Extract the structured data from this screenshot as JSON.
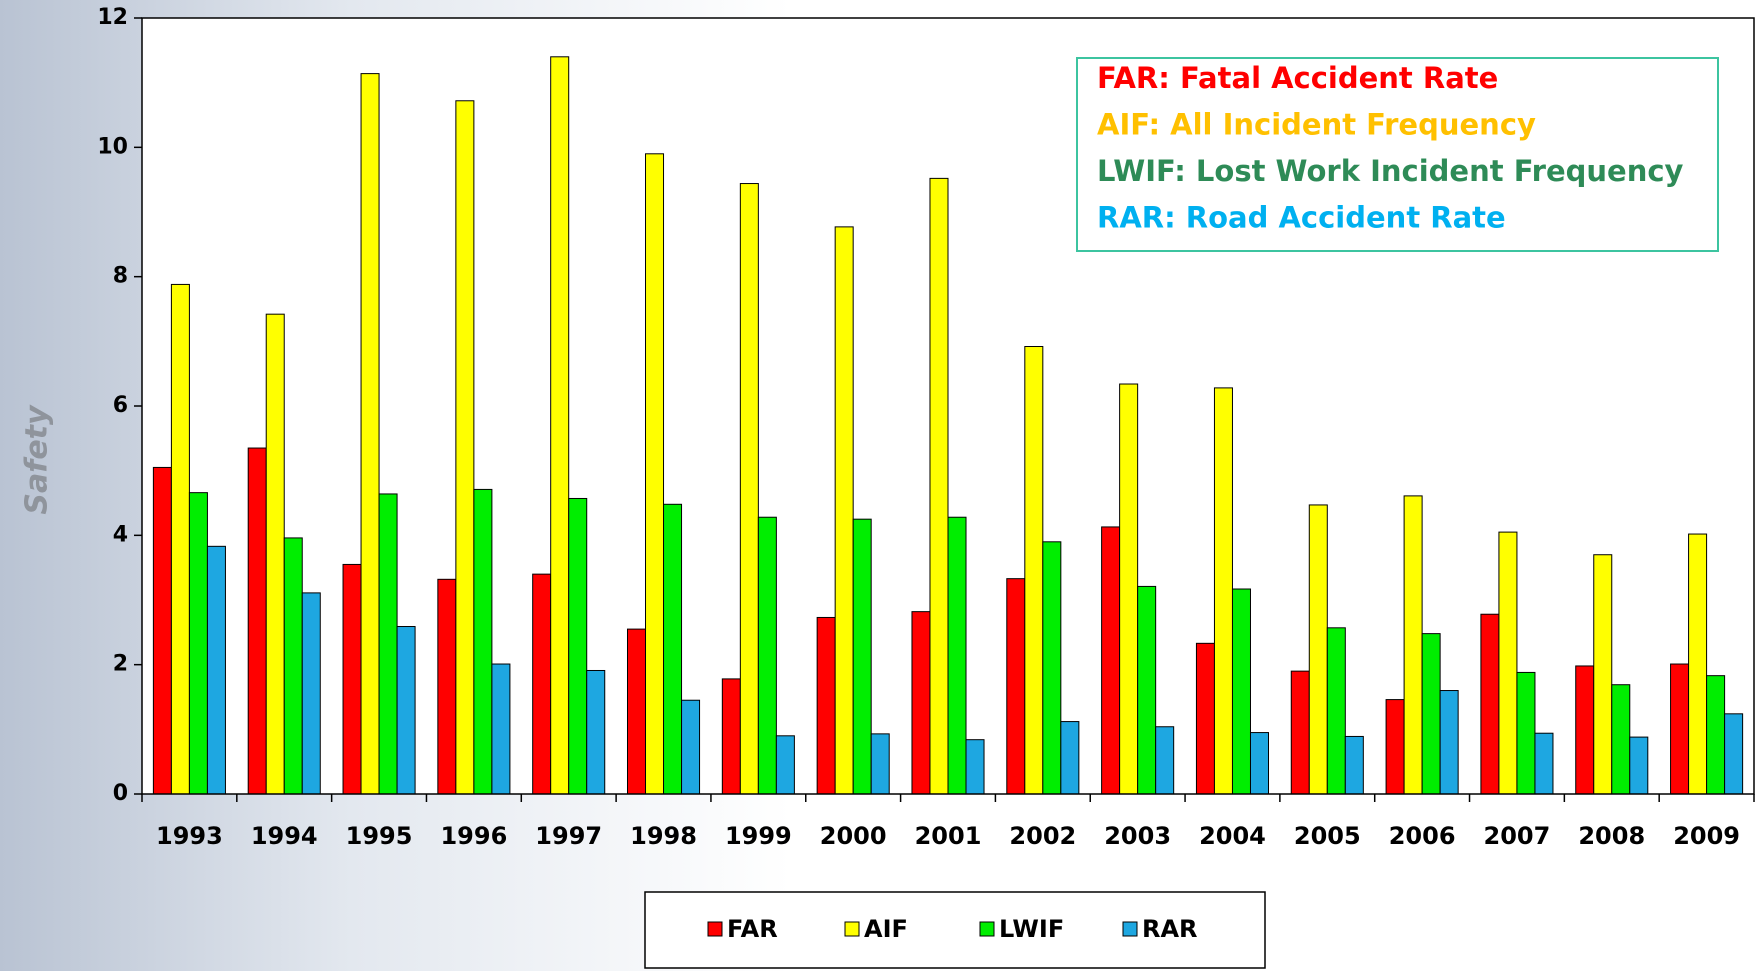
{
  "chart_data": {
    "type": "bar",
    "y_label": "Safety",
    "categories": [
      "1993",
      "1994",
      "1995",
      "1996",
      "1997",
      "1998",
      "1999",
      "2000",
      "2001",
      "2002",
      "2003",
      "2004",
      "2005",
      "2006",
      "2007",
      "2008",
      "2009"
    ],
    "series": [
      {
        "name": "FAR",
        "color": "#ff0000",
        "values": [
          5.05,
          5.35,
          3.55,
          3.32,
          3.4,
          2.55,
          1.78,
          2.73,
          2.82,
          3.33,
          4.13,
          2.33,
          1.9,
          1.46,
          2.78,
          1.98,
          2.01
        ]
      },
      {
        "name": "AIF",
        "color": "#ffff00",
        "values": [
          7.88,
          7.42,
          11.14,
          10.72,
          11.4,
          9.9,
          9.44,
          8.77,
          9.52,
          6.92,
          6.34,
          6.28,
          4.47,
          4.61,
          4.05,
          3.7,
          4.02
        ]
      },
      {
        "name": "LWIF",
        "color": "#00ee00",
        "values": [
          4.66,
          3.96,
          4.64,
          4.71,
          4.57,
          4.48,
          4.28,
          4.25,
          4.28,
          3.9,
          3.21,
          3.17,
          2.57,
          2.48,
          1.88,
          1.69,
          1.83
        ]
      },
      {
        "name": "RAR",
        "color": "#1ea7e1",
        "values": [
          3.83,
          3.11,
          2.59,
          2.01,
          1.91,
          1.45,
          0.9,
          0.93,
          0.84,
          1.12,
          1.04,
          0.95,
          0.89,
          1.6,
          0.94,
          0.88,
          1.24
        ]
      }
    ],
    "annotations": [
      {
        "text": "FAR: Fatal Accident Rate",
        "color": "#ff0000"
      },
      {
        "text": "AIF: All Incident Frequency",
        "color": "#ffc000"
      },
      {
        "text": "LWIF: Lost Work Incident Frequency",
        "color": "#2e8b57"
      },
      {
        "text": "RAR: Road Accident Rate",
        "color": "#00b0f0"
      }
    ],
    "ylim": [
      0,
      12
    ],
    "yticks": [
      0,
      2,
      4,
      6,
      8,
      10,
      12
    ],
    "grid": false,
    "legend": "bottom"
  }
}
